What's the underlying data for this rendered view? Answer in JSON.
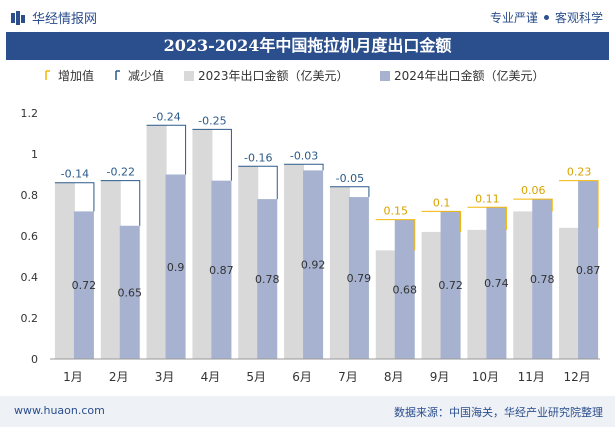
{
  "header": {
    "brand": "华经情报网",
    "tagline_left": "专业严谨",
    "tagline_right": "客观科学"
  },
  "footer": {
    "website": "www.huaon.com",
    "source": "数据来源：中国海关，华经产业研究院整理"
  },
  "colors": {
    "series_2023": "#d9d9d9",
    "series_2024": "#a6b2cf",
    "increase": "#f2b705",
    "decrease": "#2b5a8a",
    "title_bg": "#2b4e8c"
  },
  "chart_data": {
    "type": "bar",
    "title": "2023-2024年中国拖拉机月度出口金额",
    "categories": [
      "1月",
      "2月",
      "3月",
      "4月",
      "5月",
      "6月",
      "7月",
      "8月",
      "9月",
      "10月",
      "11月",
      "12月"
    ],
    "series": [
      {
        "name": "2023年出口金额（亿美元）",
        "values": [
          0.86,
          0.87,
          1.14,
          1.12,
          0.94,
          0.95,
          0.84,
          0.53,
          0.62,
          0.63,
          0.72,
          0.64
        ]
      },
      {
        "name": "2024年出口金额（亿美元）",
        "values": [
          0.72,
          0.65,
          0.9,
          0.87,
          0.78,
          0.92,
          0.79,
          0.68,
          0.72,
          0.74,
          0.78,
          0.87
        ]
      }
    ],
    "labels_2024": [
      "0.72",
      "0.65",
      "0.9",
      "0.87",
      "0.78",
      "0.92",
      "0.79",
      "0.68",
      "0.72",
      "0.74",
      "0.78",
      "0.87"
    ],
    "change": {
      "values": [
        -0.14,
        -0.22,
        -0.24,
        -0.25,
        -0.16,
        -0.03,
        -0.05,
        0.15,
        0.1,
        0.11,
        0.06,
        0.23
      ],
      "labels": [
        "-0.14",
        "-0.22",
        "-0.24",
        "-0.25",
        "-0.16",
        "-0.03",
        "-0.05",
        "0.15",
        "0.1",
        "0.11",
        "0.06",
        "0.23"
      ]
    },
    "legend": [
      "增加值",
      "减少值",
      "2023年出口金额（亿美元）",
      "2024年出口金额（亿美元）"
    ],
    "legend_position": "top",
    "y_ticks": [
      "0",
      "0.2",
      "0.4",
      "0.6",
      "0.8",
      "1",
      "1.2"
    ],
    "ylim": [
      0,
      1.2
    ],
    "grid": false
  }
}
